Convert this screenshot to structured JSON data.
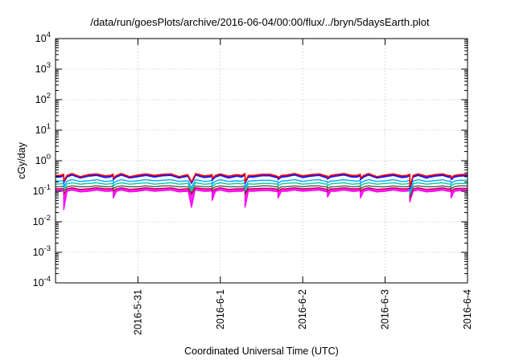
{
  "chart_data": {
    "type": "line",
    "title": "/data/run/goesPlots/archive/2016-06-04/00:00/flux/../bryn/5daysEarth.plot",
    "xlabel": "Coordinated Universal Time (UTC)",
    "ylabel": "cGy/day",
    "x_ticks": [
      "2016-5-31",
      "2016-6-1",
      "2016-6-2",
      "2016-6-3",
      "2016-6-4"
    ],
    "xlim": [
      "2016-05-30 00:00",
      "2016-06-04 00:00"
    ],
    "y_scale": "log",
    "ylim": [
      0.0001,
      10000
    ],
    "y_ticks": [
      {
        "base": "10",
        "exp": "-4"
      },
      {
        "base": "10",
        "exp": "-3"
      },
      {
        "base": "10",
        "exp": "-2"
      },
      {
        "base": "10",
        "exp": "-1"
      },
      {
        "base": "10",
        "exp": "0"
      },
      {
        "base": "10",
        "exp": "1"
      },
      {
        "base": "10",
        "exp": "2"
      },
      {
        "base": "10",
        "exp": "3"
      },
      {
        "base": "10",
        "exp": "4"
      }
    ],
    "grid": true,
    "dip_times": [
      "05-30 02:24",
      "05-30 16:48",
      "05-31 15:36",
      "05-31 21:36",
      "06-01 07:12",
      "06-01 16:48",
      "06-02 07:12",
      "06-02 16:48",
      "06-03 07:12",
      "06-03 19:12"
    ],
    "series": [
      {
        "color": "#ff0000",
        "level": 0.33,
        "dip": [
          0.22,
          0.27,
          0.2,
          0.26,
          0.2,
          0.27,
          0.28,
          0.27,
          0.14,
          0.27
        ],
        "values": [
          0.33,
          0.36,
          0.38,
          0.3,
          0.35,
          0.37,
          0.32,
          0.36,
          0.38,
          0.3,
          0.34,
          0.37,
          0.33,
          0.36,
          0.37,
          0.3,
          0.35,
          0.38,
          0.32,
          0.35,
          0.37,
          0.31,
          0.35,
          0.38,
          0.33,
          0.36,
          0.36,
          0.3,
          0.34,
          0.38,
          0.32,
          0.35,
          0.37,
          0.31,
          0.35,
          0.38,
          0.33,
          0.36,
          0.38,
          0.3,
          0.34,
          0.37,
          0.32,
          0.36,
          0.37,
          0.31,
          0.35,
          0.37,
          0.32,
          0.35,
          0.36
        ]
      },
      {
        "color": "#1010ff",
        "level": 0.29,
        "dip": [
          0.19,
          0.24,
          0.18,
          0.23,
          0.18,
          0.24,
          0.25,
          0.24,
          0.12,
          0.24
        ],
        "values": [
          0.29,
          0.32,
          0.34,
          0.27,
          0.31,
          0.33,
          0.28,
          0.32,
          0.34,
          0.27,
          0.3,
          0.33,
          0.29,
          0.32,
          0.33,
          0.27,
          0.31,
          0.34,
          0.28,
          0.31,
          0.33,
          0.27,
          0.31,
          0.34,
          0.29,
          0.32,
          0.32,
          0.27,
          0.3,
          0.34,
          0.28,
          0.31,
          0.33,
          0.27,
          0.31,
          0.34,
          0.29,
          0.32,
          0.34,
          0.27,
          0.3,
          0.33,
          0.28,
          0.32,
          0.33,
          0.27,
          0.31,
          0.33,
          0.28,
          0.31,
          0.32
        ]
      },
      {
        "color": "#00aaff",
        "level": 0.215,
        "dip": [
          0.14,
          0.18,
          0.13,
          0.17,
          0.13,
          0.18,
          0.19,
          0.18,
          0.09,
          0.18
        ],
        "values": [
          0.22,
          0.23,
          0.24,
          0.21,
          0.22,
          0.24,
          0.21,
          0.23,
          0.24,
          0.21,
          0.22,
          0.24,
          0.22,
          0.23,
          0.24,
          0.21,
          0.22,
          0.24,
          0.21,
          0.23,
          0.24,
          0.21,
          0.22,
          0.24,
          0.22,
          0.23,
          0.23,
          0.21,
          0.22,
          0.24,
          0.21,
          0.23,
          0.24,
          0.21,
          0.22,
          0.24,
          0.22,
          0.23,
          0.24,
          0.21,
          0.22,
          0.24,
          0.21,
          0.23,
          0.24,
          0.21,
          0.22,
          0.24,
          0.21,
          0.23,
          0.23
        ]
      },
      {
        "color": "#00c8a0",
        "level": 0.175,
        "dip": [
          0.12,
          0.15,
          0.11,
          0.14,
          0.11,
          0.15,
          0.15,
          0.15,
          0.08,
          0.15
        ],
        "values": [
          0.17,
          0.18,
          0.19,
          0.17,
          0.18,
          0.19,
          0.17,
          0.18,
          0.19,
          0.17,
          0.18,
          0.19,
          0.17,
          0.18,
          0.19,
          0.17,
          0.18,
          0.19,
          0.17,
          0.18,
          0.19,
          0.17,
          0.18,
          0.19,
          0.17,
          0.18,
          0.18,
          0.17,
          0.18,
          0.19,
          0.17,
          0.18,
          0.19,
          0.17,
          0.18,
          0.19,
          0.17,
          0.18,
          0.19,
          0.17,
          0.18,
          0.19,
          0.17,
          0.18,
          0.19,
          0.17,
          0.18,
          0.19,
          0.17,
          0.18,
          0.18
        ]
      },
      {
        "color": "#555555",
        "level": 0.14,
        "dip": [
          0.1,
          0.12,
          0.09,
          0.12,
          0.09,
          0.12,
          0.12,
          0.12,
          0.07,
          0.12
        ],
        "values": [
          0.14,
          0.15,
          0.15,
          0.14,
          0.14,
          0.15,
          0.14,
          0.15,
          0.15,
          0.14,
          0.14,
          0.15,
          0.14,
          0.15,
          0.15,
          0.14,
          0.14,
          0.15,
          0.14,
          0.15,
          0.15,
          0.14,
          0.14,
          0.15,
          0.14,
          0.15,
          0.15,
          0.14,
          0.14,
          0.15,
          0.14,
          0.15,
          0.15,
          0.14,
          0.14,
          0.15,
          0.14,
          0.15,
          0.15,
          0.14,
          0.14,
          0.15,
          0.14,
          0.15,
          0.15,
          0.14,
          0.14,
          0.15,
          0.14,
          0.15,
          0.15
        ]
      },
      {
        "color": "#c00040",
        "level": 0.12,
        "dip": [
          0.08,
          0.1,
          0.08,
          0.1,
          0.08,
          0.1,
          0.1,
          0.1,
          0.06,
          0.1
        ],
        "values": [
          0.12,
          0.125,
          0.13,
          0.115,
          0.12,
          0.13,
          0.12,
          0.125,
          0.13,
          0.115,
          0.12,
          0.13,
          0.12,
          0.125,
          0.13,
          0.115,
          0.12,
          0.13,
          0.12,
          0.125,
          0.13,
          0.115,
          0.12,
          0.13,
          0.12,
          0.125,
          0.125,
          0.115,
          0.12,
          0.13,
          0.12,
          0.125,
          0.13,
          0.115,
          0.12,
          0.13,
          0.12,
          0.125,
          0.13,
          0.115,
          0.12,
          0.13,
          0.12,
          0.125,
          0.13,
          0.115,
          0.12,
          0.13,
          0.12,
          0.125,
          0.125
        ]
      },
      {
        "color": "#ff00ff",
        "level": 0.1,
        "dip": [
          0.025,
          0.06,
          0.03,
          0.05,
          0.03,
          0.06,
          0.065,
          0.06,
          0.045,
          0.06
        ],
        "values": [
          0.1,
          0.105,
          0.11,
          0.095,
          0.1,
          0.11,
          0.1,
          0.105,
          0.11,
          0.095,
          0.1,
          0.11,
          0.1,
          0.105,
          0.11,
          0.095,
          0.1,
          0.11,
          0.1,
          0.105,
          0.11,
          0.095,
          0.1,
          0.11,
          0.1,
          0.105,
          0.105,
          0.095,
          0.1,
          0.11,
          0.1,
          0.105,
          0.11,
          0.095,
          0.1,
          0.11,
          0.1,
          0.105,
          0.11,
          0.095,
          0.1,
          0.11,
          0.1,
          0.105,
          0.11,
          0.095,
          0.1,
          0.11,
          0.1,
          0.105,
          0.105
        ]
      }
    ]
  }
}
